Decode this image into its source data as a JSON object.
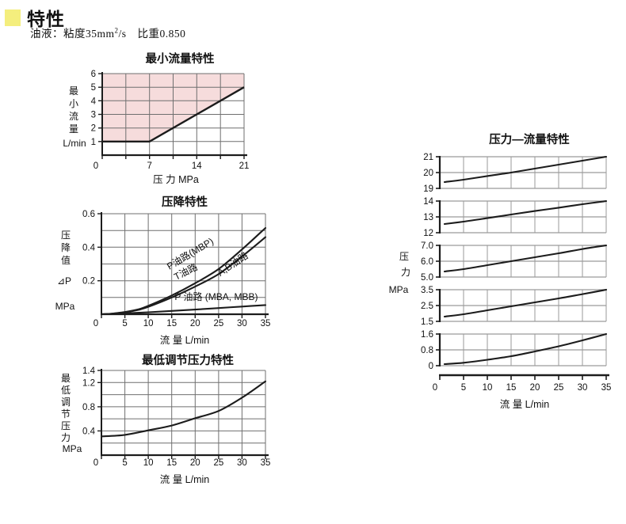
{
  "header": {
    "title": "特性"
  },
  "fluid": {
    "part1": "油液：粘度35mm",
    "sup": "2",
    "part2": "/s",
    "part3": "比重0.850"
  },
  "colors": {
    "accent_bullet": "#f4ee7d",
    "area_fill": "#f6dcdc",
    "curve": "#1c1c1c",
    "grid_left": "#6f6f6f",
    "grid_right": "#9a9a9a",
    "axis": "#1c1c1c",
    "text": "#111111"
  },
  "chart_data": [
    {
      "id": "min-flow",
      "type": "area",
      "title": "最小流量特性",
      "xlabel": "压  力  MPa",
      "ylabel": {
        "chars": "最小流量",
        "unit": "L/min"
      },
      "xlim": [
        0,
        21
      ],
      "ylim": [
        0,
        6
      ],
      "xticks": [
        "0",
        "7",
        "14",
        "21"
      ],
      "yticks": [
        "1",
        "2",
        "3",
        "4",
        "5",
        "6"
      ],
      "xgrid_step": 3.5,
      "ygrid_step": 1,
      "boundary": [
        [
          0,
          1
        ],
        [
          7,
          1
        ],
        [
          21,
          5
        ]
      ],
      "fill_polygon": [
        [
          0,
          1
        ],
        [
          7,
          1
        ],
        [
          21,
          5
        ],
        [
          21,
          6
        ],
        [
          0,
          6
        ]
      ],
      "grid": true,
      "legend": "none"
    },
    {
      "id": "pressure-drop",
      "type": "line",
      "title": "压降特性",
      "xlabel": "流  量  L/min",
      "ylabel": {
        "chars": "压降值",
        "symbol": "⊿P",
        "unit": "MPa"
      },
      "xlim": [
        0,
        35
      ],
      "ylim": [
        0,
        0.6
      ],
      "xticks": [
        "0",
        "5",
        "10",
        "15",
        "20",
        "25",
        "30",
        "35"
      ],
      "yticks": [
        "0.2",
        "0.4",
        "0.6"
      ],
      "xgrid_step": 5,
      "ygrid_step": 0.1,
      "series": [
        {
          "name": "P油路(MBP) / T油路",
          "points": [
            [
              0,
              0
            ],
            [
              2,
              0.003
            ],
            [
              5,
              0.013
            ],
            [
              8,
              0.03
            ],
            [
              10,
              0.05
            ],
            [
              15,
              0.112
            ],
            [
              20,
              0.185
            ],
            [
              25,
              0.27
            ],
            [
              30,
              0.387
            ],
            [
              35,
              0.515
            ]
          ]
        },
        {
          "name": "A,B油路",
          "points": [
            [
              0,
              0
            ],
            [
              2,
              0.003
            ],
            [
              5,
              0.012
            ],
            [
              8,
              0.027
            ],
            [
              10,
              0.044
            ],
            [
              15,
              0.1
            ],
            [
              20,
              0.165
            ],
            [
              25,
              0.24
            ],
            [
              30,
              0.345
            ],
            [
              35,
              0.46
            ]
          ]
        },
        {
          "name": "P油路(MBA,MBB)",
          "points": [
            [
              0,
              0
            ],
            [
              5,
              0.005
            ],
            [
              10,
              0.012
            ],
            [
              15,
              0.02
            ],
            [
              20,
              0.028
            ],
            [
              25,
              0.037
            ],
            [
              30,
              0.046
            ],
            [
              35,
              0.055
            ]
          ]
        }
      ],
      "annotations": [
        {
          "text": "P油路(MBP)",
          "x": 19.3,
          "y": 0.345,
          "rotate": -31
        },
        {
          "text": "T油路",
          "x": 18.3,
          "y": 0.236,
          "rotate": -27
        },
        {
          "text": "A,B油路",
          "x": 28.4,
          "y": 0.283,
          "rotate": -34
        },
        {
          "text": "P 油路 (MBA, MBB)",
          "x": 24.5,
          "y": 0.085,
          "rotate": 0
        }
      ],
      "grid": true,
      "legend": "inline"
    },
    {
      "id": "min-adjust",
      "type": "line",
      "title": "最低调节压力特性",
      "xlabel": "流  量  L/min",
      "ylabel": {
        "chars": "最低调节压力",
        "unit": "MPa"
      },
      "xlim": [
        0,
        35
      ],
      "ylim": [
        0,
        1.4
      ],
      "xticks": [
        "0",
        "5",
        "10",
        "15",
        "20",
        "25",
        "30",
        "35"
      ],
      "yticks": [
        "0.4",
        "0.8",
        "1.2",
        "1.4"
      ],
      "xgrid_step": 5,
      "ygrid_step": 0.2,
      "series": [
        {
          "name": "最低调节压力",
          "points": [
            [
              0,
              0.31
            ],
            [
              5,
              0.335
            ],
            [
              10,
              0.41
            ],
            [
              15,
              0.49
            ],
            [
              20,
              0.61
            ],
            [
              25,
              0.73
            ],
            [
              30,
              0.95
            ],
            [
              35,
              1.22
            ]
          ]
        }
      ],
      "grid": true,
      "legend": "none"
    },
    {
      "id": "pressure-flow",
      "type": "panel-line",
      "title": "压力—流量特性",
      "xlabel": "流  量  L/min",
      "ylabel": {
        "chars": "压力",
        "unit": "MPa"
      },
      "xlim": [
        0,
        35
      ],
      "xticks": [
        "0",
        "5",
        "10",
        "15",
        "20",
        "25",
        "30",
        "35"
      ],
      "xgrid_step": 5,
      "panels": [
        {
          "ylim": [
            19,
            21
          ],
          "yticks": [
            "19",
            "20",
            "21"
          ],
          "points": [
            [
              1,
              19.4
            ],
            [
              5,
              19.55
            ],
            [
              10,
              19.78
            ],
            [
              15,
              20.0
            ],
            [
              20,
              20.25
            ],
            [
              25,
              20.5
            ],
            [
              30,
              20.75
            ],
            [
              35,
              21.0
            ]
          ]
        },
        {
          "ylim": [
            12,
            14
          ],
          "yticks": [
            "12",
            "13",
            "14"
          ],
          "points": [
            [
              1,
              12.55
            ],
            [
              5,
              12.7
            ],
            [
              10,
              12.92
            ],
            [
              15,
              13.15
            ],
            [
              20,
              13.37
            ],
            [
              25,
              13.58
            ],
            [
              30,
              13.8
            ],
            [
              35,
              14.0
            ]
          ]
        },
        {
          "ylim": [
            5,
            7
          ],
          "yticks": [
            "5.0",
            "6.0",
            "7.0"
          ],
          "points": [
            [
              1,
              5.35
            ],
            [
              5,
              5.5
            ],
            [
              10,
              5.75
            ],
            [
              15,
              6.0
            ],
            [
              20,
              6.25
            ],
            [
              25,
              6.5
            ],
            [
              30,
              6.77
            ],
            [
              35,
              7.0
            ]
          ]
        },
        {
          "ylim": [
            1.5,
            3.5
          ],
          "yticks": [
            "1.5",
            "2.5",
            "3.5"
          ],
          "points": [
            [
              1,
              1.8
            ],
            [
              5,
              1.95
            ],
            [
              10,
              2.2
            ],
            [
              15,
              2.45
            ],
            [
              20,
              2.7
            ],
            [
              25,
              2.95
            ],
            [
              30,
              3.22
            ],
            [
              35,
              3.5
            ]
          ]
        },
        {
          "ylim": [
            0,
            1.6
          ],
          "yticks": [
            "0",
            "0.8",
            "1.6"
          ],
          "points": [
            [
              1,
              0.08
            ],
            [
              5,
              0.15
            ],
            [
              10,
              0.3
            ],
            [
              15,
              0.48
            ],
            [
              20,
              0.72
            ],
            [
              25,
              0.98
            ],
            [
              30,
              1.28
            ],
            [
              35,
              1.6
            ]
          ]
        }
      ],
      "grid": true,
      "legend": "none"
    }
  ]
}
